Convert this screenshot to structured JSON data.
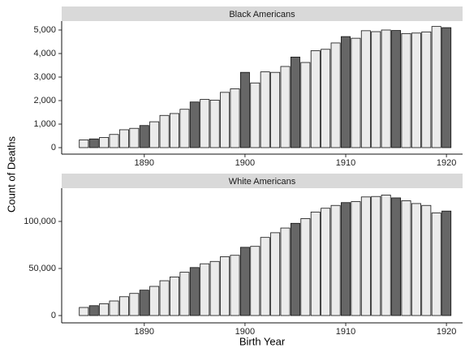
{
  "chart_data": [
    {
      "type": "bar",
      "title": "Black Americans",
      "y_label": "Count of Deaths",
      "x": [
        1884,
        1885,
        1886,
        1887,
        1888,
        1889,
        1890,
        1891,
        1892,
        1893,
        1894,
        1895,
        1896,
        1897,
        1898,
        1899,
        1900,
        1901,
        1902,
        1903,
        1904,
        1905,
        1906,
        1907,
        1908,
        1909,
        1910,
        1911,
        1912,
        1913,
        1914,
        1915,
        1916,
        1917,
        1918,
        1919,
        1920
      ],
      "values": [
        330,
        370,
        430,
        560,
        760,
        820,
        940,
        1100,
        1370,
        1450,
        1630,
        1940,
        2050,
        2020,
        2350,
        2500,
        3200,
        2750,
        3220,
        3200,
        3450,
        3850,
        3620,
        4120,
        4180,
        4450,
        4720,
        4650,
        4970,
        4930,
        5000,
        4980,
        4850,
        4870,
        4920,
        5150,
        5100
      ],
      "colors": [
        "#ebebeb",
        "#666666",
        "#ebebeb",
        "#ebebeb",
        "#ebebeb",
        "#ebebeb",
        "#666666",
        "#ebebeb",
        "#ebebeb",
        "#ebebeb",
        "#ebebeb",
        "#666666",
        "#ebebeb",
        "#ebebeb",
        "#ebebeb",
        "#ebebeb",
        "#666666",
        "#ebebeb",
        "#ebebeb",
        "#ebebeb",
        "#ebebeb",
        "#666666",
        "#ebebeb",
        "#ebebeb",
        "#ebebeb",
        "#ebebeb",
        "#666666",
        "#ebebeb",
        "#ebebeb",
        "#ebebeb",
        "#ebebeb",
        "#666666",
        "#ebebeb",
        "#ebebeb",
        "#ebebeb",
        "#ebebeb",
        "#666666"
      ],
      "xlim": [
        1881.8,
        1921.6
      ],
      "xticks": [
        1890,
        1900,
        1910,
        1920
      ],
      "ylim": [
        -276,
        5379
      ],
      "yticks": [
        0,
        {
          "value": 1000,
          "label": "1,000"
        },
        {
          "value": 2000,
          "label": "2,000"
        },
        {
          "value": 3000,
          "label": "3,000"
        },
        {
          "value": 4000,
          "label": "4,000"
        },
        {
          "value": 5000,
          "label": "5,000"
        }
      ]
    },
    {
      "type": "bar",
      "title": "White Americans",
      "x_label": "Birth Year",
      "x": [
        1884,
        1885,
        1886,
        1887,
        1888,
        1889,
        1890,
        1891,
        1892,
        1893,
        1894,
        1895,
        1896,
        1897,
        1898,
        1899,
        1900,
        1901,
        1902,
        1903,
        1904,
        1905,
        1906,
        1907,
        1908,
        1909,
        1910,
        1911,
        1912,
        1913,
        1914,
        1915,
        1916,
        1917,
        1918,
        1919,
        1920
      ],
      "values": [
        8600,
        10500,
        12500,
        15500,
        20000,
        23500,
        27000,
        31000,
        37000,
        41000,
        46000,
        51000,
        55000,
        57500,
        62500,
        64000,
        72500,
        73500,
        83000,
        88000,
        93000,
        98000,
        103000,
        110000,
        114000,
        117000,
        120000,
        121000,
        126000,
        126500,
        128000,
        125000,
        122000,
        119000,
        117000,
        109000,
        111000
      ],
      "colors": [
        "#ebebeb",
        "#666666",
        "#ebebeb",
        "#ebebeb",
        "#ebebeb",
        "#ebebeb",
        "#666666",
        "#ebebeb",
        "#ebebeb",
        "#ebebeb",
        "#ebebeb",
        "#666666",
        "#ebebeb",
        "#ebebeb",
        "#ebebeb",
        "#ebebeb",
        "#666666",
        "#ebebeb",
        "#ebebeb",
        "#ebebeb",
        "#ebebeb",
        "#666666",
        "#ebebeb",
        "#ebebeb",
        "#ebebeb",
        "#ebebeb",
        "#666666",
        "#ebebeb",
        "#ebebeb",
        "#ebebeb",
        "#ebebeb",
        "#666666",
        "#ebebeb",
        "#ebebeb",
        "#ebebeb",
        "#ebebeb",
        "#666666"
      ],
      "xlim": [
        1881.8,
        1921.6
      ],
      "xticks": [
        1890,
        1900,
        1910,
        1920
      ],
      "ylim": [
        -7760,
        135300
      ],
      "yticks": [
        0,
        {
          "value": 50000,
          "label": "50,000"
        },
        {
          "value": 100000,
          "label": "100,000"
        }
      ]
    }
  ]
}
